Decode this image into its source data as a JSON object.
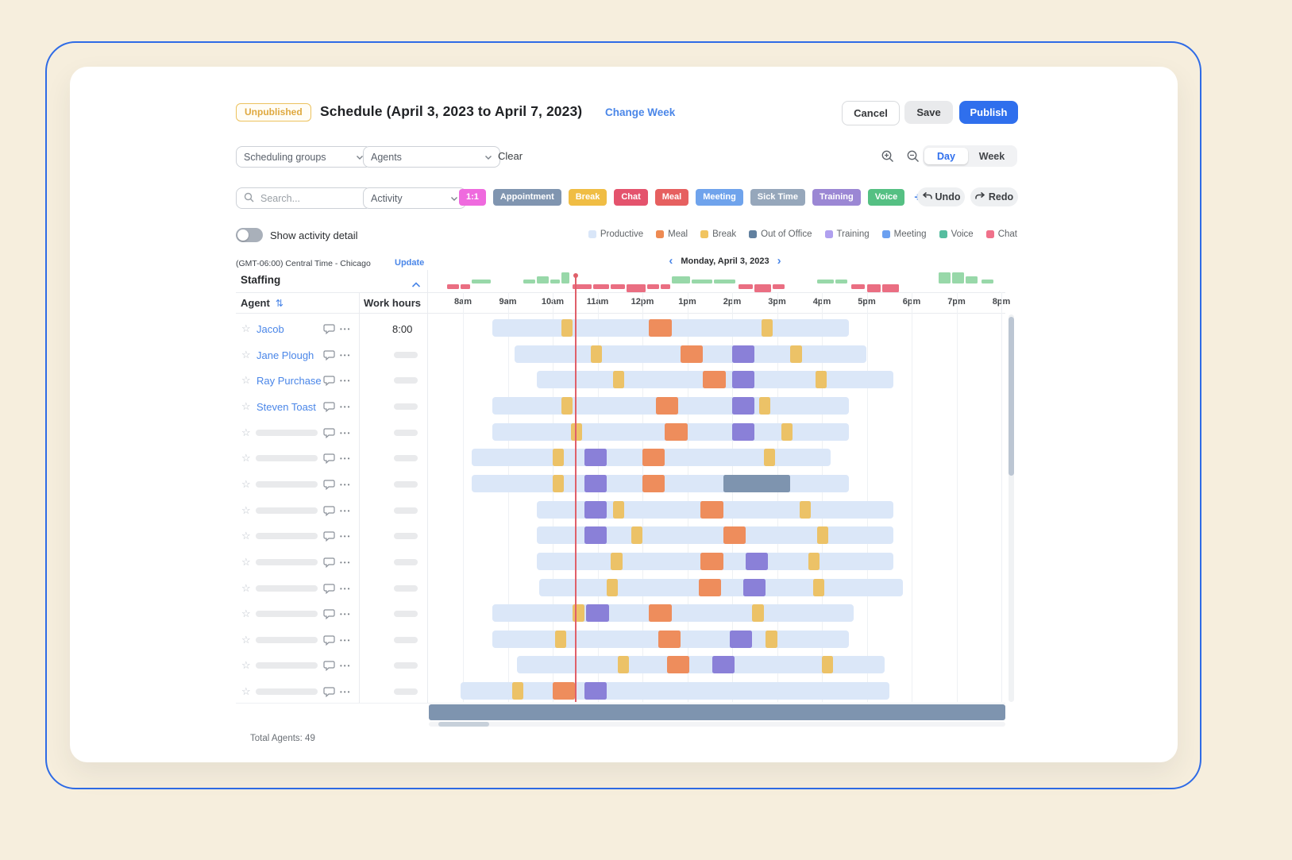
{
  "header": {
    "status_badge": "Unpublished",
    "title": "Schedule (April 3, 2023 to April 7, 2023)",
    "change_week": "Change Week",
    "cancel": "Cancel",
    "save": "Save",
    "publish": "Publish"
  },
  "toolbar": {
    "scheduling_groups": "Scheduling groups",
    "agents_filter": "Agents",
    "clear": "Clear",
    "day": "Day",
    "week": "Week",
    "search_placeholder": "Search...",
    "activity": "Activity",
    "chips": [
      {
        "label": "1:1",
        "color": "#ef6ade"
      },
      {
        "label": "Appointment",
        "color": "#8095b0"
      },
      {
        "label": "Break",
        "color": "#f0bd44"
      },
      {
        "label": "Chat",
        "color": "#e4536d"
      },
      {
        "label": "Meal",
        "color": "#e66060"
      },
      {
        "label": "Meeting",
        "color": "#6fa3ec"
      },
      {
        "label": "Sick Time",
        "color": "#96a7bb"
      },
      {
        "label": "Training",
        "color": "#9b87d4"
      },
      {
        "label": "Voice",
        "color": "#55c083"
      }
    ],
    "add_chip": "+",
    "undo": "Undo",
    "redo": "Redo",
    "show_activity_detail": "Show activity detail",
    "activity_detail_on": false
  },
  "legend": [
    {
      "label": "Productive",
      "color": "#d9e6f8"
    },
    {
      "label": "Meal",
      "color": "#ee8a52"
    },
    {
      "label": "Break",
      "color": "#f1c45f"
    },
    {
      "label": "Out of Office",
      "color": "#61809f"
    },
    {
      "label": "Training",
      "color": "#b0a0ef"
    },
    {
      "label": "Meeting",
      "color": "#6ba0f0"
    },
    {
      "label": "Voice",
      "color": "#55bd9f"
    },
    {
      "label": "Chat",
      "color": "#f0718a"
    }
  ],
  "timezone": {
    "label": "(GMT-06:00) Central Time - Chicago",
    "update": "Update"
  },
  "date_nav": {
    "prev": "‹",
    "label": "Monday, April 3, 2023",
    "next": "›"
  },
  "staffing": {
    "title": "Staffing",
    "chart": {
      "type": "bar",
      "description": "staffing surplus (green, up) vs shortage (red, down) per 15-30 min slot, hours offset from 8am",
      "up_color": "#98d8a9",
      "down_color": "#ea6e82",
      "segments": [
        {
          "t": -0.35,
          "w": 0.3,
          "v": -1
        },
        {
          "t": -0.05,
          "w": 0.25,
          "v": -1
        },
        {
          "t": 0.2,
          "w": 0.45,
          "v": 1
        },
        {
          "t": 1.35,
          "w": 0.3,
          "v": 1
        },
        {
          "t": 1.65,
          "w": 0.3,
          "v": 2
        },
        {
          "t": 1.95,
          "w": 0.25,
          "v": 1
        },
        {
          "t": 2.2,
          "w": 0.2,
          "v": 3
        },
        {
          "t": 2.45,
          "w": 0.45,
          "v": -1
        },
        {
          "t": 2.9,
          "w": 0.4,
          "v": -1
        },
        {
          "t": 3.3,
          "w": 0.35,
          "v": -1
        },
        {
          "t": 3.65,
          "w": 0.45,
          "v": -2
        },
        {
          "t": 4.1,
          "w": 0.3,
          "v": -1
        },
        {
          "t": 4.4,
          "w": 0.25,
          "v": -1
        },
        {
          "t": 4.65,
          "w": 0.45,
          "v": 2
        },
        {
          "t": 5.1,
          "w": 0.5,
          "v": 1
        },
        {
          "t": 5.6,
          "w": 0.5,
          "v": 1
        },
        {
          "t": 6.15,
          "w": 0.35,
          "v": -1
        },
        {
          "t": 6.5,
          "w": 0.4,
          "v": -2
        },
        {
          "t": 6.9,
          "w": 0.3,
          "v": -1
        },
        {
          "t": 7.9,
          "w": 0.4,
          "v": 1
        },
        {
          "t": 8.3,
          "w": 0.3,
          "v": 1
        },
        {
          "t": 8.65,
          "w": 0.35,
          "v": -1
        },
        {
          "t": 9.0,
          "w": 0.35,
          "v": -2
        },
        {
          "t": 9.35,
          "w": 0.4,
          "v": -2
        },
        {
          "t": 10.6,
          "w": 0.3,
          "v": 3
        },
        {
          "t": 10.9,
          "w": 0.3,
          "v": 3
        },
        {
          "t": 11.2,
          "w": 0.3,
          "v": 2
        },
        {
          "t": 11.55,
          "w": 0.3,
          "v": 1
        }
      ]
    }
  },
  "grid": {
    "agent_header": "Agent",
    "work_hours_header": "Work hours",
    "hours": [
      "8am",
      "9am",
      "10am",
      "11am",
      "12pm",
      "1pm",
      "2pm",
      "3pm",
      "4pm",
      "5pm",
      "6pm",
      "7pm",
      "8pm"
    ],
    "current_time_hour": 2.5
  },
  "rows": [
    {
      "name": "Jacob",
      "work_hours": "8:00",
      "bar": [
        0.65,
        8.6
      ],
      "blocks": [
        {
          "type": "break",
          "start": 2.2,
          "dur": 0.25
        },
        {
          "type": "meal",
          "start": 4.15,
          "dur": 0.5
        },
        {
          "type": "break",
          "start": 6.65,
          "dur": 0.25
        }
      ]
    },
    {
      "name": "Jane Plough",
      "work_hours": null,
      "bar": [
        1.15,
        9.0
      ],
      "blocks": [
        {
          "type": "break",
          "start": 2.85,
          "dur": 0.25
        },
        {
          "type": "meal",
          "start": 4.85,
          "dur": 0.5
        },
        {
          "type": "training",
          "start": 6.0,
          "dur": 0.5
        },
        {
          "type": "break",
          "start": 7.3,
          "dur": 0.25
        }
      ]
    },
    {
      "name": "Ray Purchase",
      "work_hours": null,
      "bar": [
        1.65,
        9.6
      ],
      "blocks": [
        {
          "type": "break",
          "start": 3.35,
          "dur": 0.25
        },
        {
          "type": "meal",
          "start": 5.35,
          "dur": 0.5
        },
        {
          "type": "training",
          "start": 6.0,
          "dur": 0.5
        },
        {
          "type": "break",
          "start": 7.85,
          "dur": 0.25
        }
      ]
    },
    {
      "name": "Steven Toast",
      "work_hours": null,
      "bar": [
        0.65,
        8.6
      ],
      "blocks": [
        {
          "type": "break",
          "start": 2.2,
          "dur": 0.25
        },
        {
          "type": "meal",
          "start": 4.3,
          "dur": 0.5
        },
        {
          "type": "training",
          "start": 6.0,
          "dur": 0.5
        },
        {
          "type": "break",
          "start": 6.6,
          "dur": 0.25
        }
      ]
    },
    {
      "name": null,
      "work_hours": null,
      "bar": [
        0.65,
        8.6
      ],
      "blocks": [
        {
          "type": "break",
          "start": 2.4,
          "dur": 0.25
        },
        {
          "type": "meal",
          "start": 4.5,
          "dur": 0.5
        },
        {
          "type": "training",
          "start": 6.0,
          "dur": 0.5
        },
        {
          "type": "break",
          "start": 7.1,
          "dur": 0.25
        }
      ]
    },
    {
      "name": null,
      "work_hours": null,
      "bar": [
        0.2,
        8.2
      ],
      "blocks": [
        {
          "type": "break",
          "start": 2.0,
          "dur": 0.25
        },
        {
          "type": "training",
          "start": 2.7,
          "dur": 0.5
        },
        {
          "type": "meal",
          "start": 4.0,
          "dur": 0.5
        },
        {
          "type": "break",
          "start": 6.7,
          "dur": 0.25
        }
      ]
    },
    {
      "name": null,
      "work_hours": null,
      "bar": [
        0.2,
        8.6
      ],
      "blocks": [
        {
          "type": "break",
          "start": 2.0,
          "dur": 0.25
        },
        {
          "type": "training",
          "start": 2.7,
          "dur": 0.5
        },
        {
          "type": "meal",
          "start": 4.0,
          "dur": 0.5
        },
        {
          "type": "ooo",
          "start": 5.8,
          "dur": 1.5
        }
      ]
    },
    {
      "name": null,
      "work_hours": null,
      "bar": [
        1.65,
        9.6
      ],
      "blocks": [
        {
          "type": "training",
          "start": 2.7,
          "dur": 0.5
        },
        {
          "type": "break",
          "start": 3.35,
          "dur": 0.25
        },
        {
          "type": "meal",
          "start": 5.3,
          "dur": 0.5
        },
        {
          "type": "break",
          "start": 7.5,
          "dur": 0.25
        }
      ]
    },
    {
      "name": null,
      "work_hours": null,
      "bar": [
        1.65,
        9.6
      ],
      "blocks": [
        {
          "type": "training",
          "start": 2.7,
          "dur": 0.5
        },
        {
          "type": "break",
          "start": 3.75,
          "dur": 0.25
        },
        {
          "type": "meal",
          "start": 5.8,
          "dur": 0.5
        },
        {
          "type": "break",
          "start": 7.9,
          "dur": 0.25
        }
      ]
    },
    {
      "name": null,
      "work_hours": null,
      "bar": [
        1.65,
        9.6
      ],
      "blocks": [
        {
          "type": "break",
          "start": 3.3,
          "dur": 0.25
        },
        {
          "type": "meal",
          "start": 5.3,
          "dur": 0.5
        },
        {
          "type": "training",
          "start": 6.3,
          "dur": 0.5
        },
        {
          "type": "break",
          "start": 7.7,
          "dur": 0.25
        }
      ]
    },
    {
      "name": null,
      "work_hours": null,
      "bar": [
        1.7,
        9.8
      ],
      "blocks": [
        {
          "type": "break",
          "start": 3.2,
          "dur": 0.25
        },
        {
          "type": "meal",
          "start": 5.25,
          "dur": 0.5
        },
        {
          "type": "training",
          "start": 6.25,
          "dur": 0.5
        },
        {
          "type": "break",
          "start": 7.8,
          "dur": 0.25
        }
      ]
    },
    {
      "name": null,
      "work_hours": null,
      "bar": [
        0.65,
        8.7
      ],
      "blocks": [
        {
          "type": "break",
          "start": 2.45,
          "dur": 0.25
        },
        {
          "type": "training",
          "start": 2.75,
          "dur": 0.5
        },
        {
          "type": "meal",
          "start": 4.15,
          "dur": 0.5
        },
        {
          "type": "break",
          "start": 6.45,
          "dur": 0.25
        }
      ]
    },
    {
      "name": null,
      "work_hours": null,
      "bar": [
        0.65,
        8.6
      ],
      "blocks": [
        {
          "type": "break",
          "start": 2.05,
          "dur": 0.25
        },
        {
          "type": "meal",
          "start": 4.35,
          "dur": 0.5
        },
        {
          "type": "training",
          "start": 5.95,
          "dur": 0.5
        },
        {
          "type": "break",
          "start": 6.75,
          "dur": 0.25
        }
      ]
    },
    {
      "name": null,
      "work_hours": null,
      "bar": [
        1.2,
        9.4
      ],
      "blocks": [
        {
          "type": "break",
          "start": 3.45,
          "dur": 0.25
        },
        {
          "type": "meal",
          "start": 4.55,
          "dur": 0.5
        },
        {
          "type": "training",
          "start": 5.55,
          "dur": 0.5
        },
        {
          "type": "break",
          "start": 8.0,
          "dur": 0.25
        }
      ]
    },
    {
      "name": null,
      "work_hours": null,
      "bar": [
        -0.05,
        9.5
      ],
      "blocks": [
        {
          "type": "break",
          "start": 1.1,
          "dur": 0.25
        },
        {
          "type": "meal",
          "start": 2.0,
          "dur": 0.5
        },
        {
          "type": "training",
          "start": 2.7,
          "dur": 0.5
        }
      ]
    }
  ],
  "block_colors": {
    "productive": "#dbe7f8",
    "break": "#ecc267",
    "meal": "#ee8d5c",
    "training": "#8a80d8",
    "ooo": "#7e94af"
  },
  "footer": {
    "total_agents": "Total Agents: 49"
  },
  "glyphs": {
    "star": "☆",
    "ellipsis": "•••",
    "sort": "⇅"
  }
}
